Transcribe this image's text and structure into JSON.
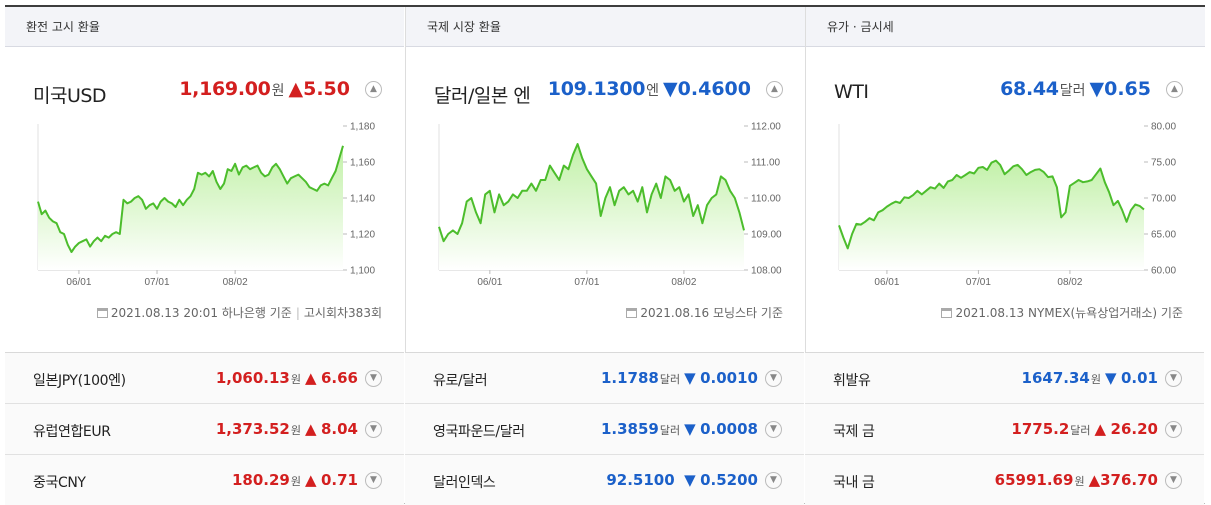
{
  "panels": [
    {
      "header": "환전 고시 환율",
      "main": {
        "name": "미국USD",
        "value": "1,169.00",
        "unit": "원",
        "dir": "up",
        "arrow": "▲",
        "change": "5.50"
      },
      "footer": {
        "date": "2021.08.13 20:01",
        "source": "하나은행 기준",
        "extra": "고시회차383회"
      },
      "rows": [
        {
          "name": "일본JPY(100엔)",
          "value": "1,060.13",
          "unit": "원",
          "dir": "up",
          "arrow": "▲",
          "change": "6.66"
        },
        {
          "name": "유럽연합EUR",
          "value": "1,373.52",
          "unit": "원",
          "dir": "up",
          "arrow": "▲",
          "change": "8.04"
        },
        {
          "name": "중국CNY",
          "value": "180.29",
          "unit": "원",
          "dir": "up",
          "arrow": "▲",
          "change": "0.71"
        }
      ]
    },
    {
      "header": "국제 시장 환율",
      "main": {
        "name": "달러/일본 엔",
        "value": "109.1300",
        "unit": "엔",
        "dir": "down",
        "arrow": "▼",
        "change": "0.4600"
      },
      "footer": {
        "date": "2021.08.16",
        "source": "모닝스타 기준",
        "extra": ""
      },
      "rows": [
        {
          "name": "유로/달러",
          "value": "1.1788",
          "unit": "달러",
          "dir": "down",
          "arrow": "▼",
          "change": "0.0010"
        },
        {
          "name": "영국파운드/달러",
          "value": "1.3859",
          "unit": "달러",
          "dir": "down",
          "arrow": "▼",
          "change": "0.0008"
        },
        {
          "name": "달러인덱스",
          "value": "92.5100",
          "unit": "",
          "dir": "down",
          "arrow": "▼",
          "change": "0.5200"
        }
      ]
    },
    {
      "header": "유가 · 금시세",
      "main": {
        "name": "WTI",
        "value": "68.44",
        "unit": "달러",
        "dir": "down",
        "arrow": "▼",
        "change": "0.65"
      },
      "footer": {
        "date": "2021.08.13",
        "source": "NYMEX(뉴욕상업거래소) 기준",
        "extra": ""
      },
      "rows": [
        {
          "name": "휘발유",
          "value": "1647.34",
          "unit": "원",
          "dir": "down",
          "arrow": "▼",
          "change": "0.01"
        },
        {
          "name": "국제 금",
          "value": "1775.2",
          "unit": "달러",
          "dir": "up",
          "arrow": "▲",
          "change": "26.20"
        },
        {
          "name": "국내 금",
          "value": "65991.69",
          "unit": "원",
          "dir": "up",
          "arrow": "▲",
          "change": "376.70"
        }
      ]
    }
  ],
  "chart_data": [
    {
      "type": "area",
      "title": "미국USD",
      "x_ticks": [
        "06/01",
        "07/01",
        "08/02"
      ],
      "x_tick_index": [
        11,
        32,
        53
      ],
      "yticks": [
        1100,
        1120,
        1140,
        1160,
        1180
      ],
      "y_tick_labels": [
        "1,100",
        "1,120",
        "1,140",
        "1,160",
        "1,180"
      ],
      "ylim": [
        1100,
        1180
      ],
      "grid": false,
      "values": [
        1138,
        1131,
        1133,
        1129,
        1127,
        1126,
        1121,
        1120,
        1114,
        1110,
        1113,
        1115,
        1116,
        1117,
        1113,
        1116,
        1118,
        1116,
        1119,
        1118,
        1120,
        1121,
        1120,
        1139,
        1137,
        1138,
        1140,
        1141,
        1139,
        1134,
        1136,
        1137,
        1134,
        1138,
        1140,
        1138,
        1137,
        1135,
        1139,
        1136,
        1139,
        1141,
        1145,
        1154,
        1153,
        1154,
        1152,
        1155,
        1149,
        1145,
        1148,
        1156,
        1155,
        1159,
        1153,
        1157,
        1158,
        1156,
        1157,
        1158,
        1154,
        1152,
        1153,
        1157,
        1159,
        1156,
        1152,
        1148,
        1151,
        1152,
        1153,
        1151,
        1149,
        1146,
        1145,
        1144,
        1147,
        1148,
        1147,
        1151,
        1155,
        1162,
        1169
      ]
    },
    {
      "type": "area",
      "title": "달러/일본 엔",
      "x_ticks": [
        "06/01",
        "07/01",
        "08/02"
      ],
      "x_tick_index": [
        11,
        32,
        53
      ],
      "yticks": [
        108,
        109,
        110,
        111,
        112
      ],
      "y_tick_labels": [
        "108.00",
        "109.00",
        "110.00",
        "111.00",
        "112.00"
      ],
      "ylim": [
        108,
        112
      ],
      "grid": false,
      "values": [
        109.2,
        108.8,
        109.0,
        109.1,
        109.0,
        109.3,
        109.9,
        110.0,
        109.6,
        109.3,
        110.1,
        110.2,
        109.6,
        110.1,
        109.8,
        109.9,
        110.1,
        110.0,
        110.2,
        110.2,
        110.4,
        110.2,
        110.5,
        110.5,
        110.9,
        110.7,
        110.5,
        110.9,
        110.8,
        111.2,
        111.5,
        111.1,
        110.8,
        110.6,
        110.4,
        109.5,
        110.0,
        110.3,
        109.8,
        110.2,
        110.3,
        110.1,
        110.2,
        109.9,
        110.3,
        109.6,
        110.1,
        110.4,
        110.0,
        110.6,
        110.5,
        110.2,
        110.3,
        109.9,
        110.1,
        109.5,
        109.8,
        109.3,
        109.8,
        110.0,
        110.1,
        110.6,
        110.5,
        110.2,
        110.0,
        109.6,
        109.1
      ]
    },
    {
      "type": "area",
      "title": "WTI",
      "x_ticks": [
        "06/01",
        "07/01",
        "08/02"
      ],
      "x_tick_index": [
        11,
        32,
        53
      ],
      "yticks": [
        60,
        65,
        70,
        75,
        80
      ],
      "y_tick_labels": [
        "60.00",
        "65.00",
        "70.00",
        "75.00",
        "80.00"
      ],
      "ylim": [
        60,
        80
      ],
      "grid": false,
      "values": [
        66.2,
        64.5,
        63.0,
        65.0,
        66.4,
        66.3,
        66.7,
        67.2,
        66.9,
        68.0,
        68.3,
        68.8,
        69.2,
        69.5,
        69.3,
        70.1,
        70.0,
        70.4,
        71.0,
        70.5,
        71.0,
        71.5,
        71.3,
        72.0,
        71.4,
        72.3,
        72.5,
        73.2,
        72.8,
        73.2,
        73.6,
        73.4,
        74.2,
        74.3,
        73.9,
        74.9,
        75.2,
        74.6,
        73.3,
        73.8,
        74.4,
        74.6,
        74.0,
        73.2,
        73.6,
        73.9,
        74.0,
        73.6,
        72.9,
        73.0,
        71.5,
        67.3,
        68.0,
        71.7,
        72.1,
        72.5,
        72.2,
        72.3,
        72.5,
        73.3,
        74.1,
        72.2,
        70.8,
        69.0,
        69.6,
        68.3,
        66.7,
        68.3,
        69.1,
        68.9,
        68.4
      ]
    }
  ]
}
